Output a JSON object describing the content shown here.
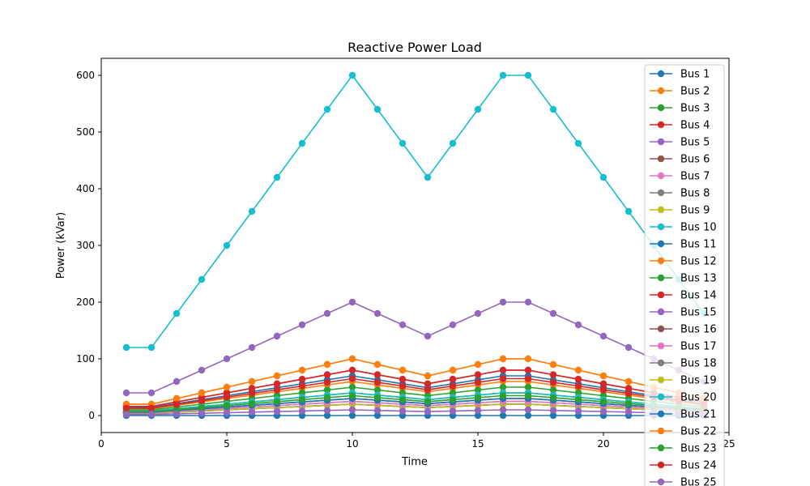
{
  "chart_data": {
    "type": "line",
    "title": "Reactive Power Load",
    "xlabel": "Time",
    "ylabel": "Power (kVar)",
    "xlim": [
      0,
      25
    ],
    "ylim": [
      -30,
      630
    ],
    "x_ticks": [
      0,
      5,
      10,
      15,
      20,
      25
    ],
    "y_ticks": [
      0,
      100,
      200,
      300,
      400,
      500,
      600
    ],
    "grid": false,
    "legend_position": "right",
    "x": [
      1,
      2,
      3,
      4,
      5,
      6,
      7,
      8,
      9,
      10,
      11,
      12,
      13,
      14,
      15,
      16,
      17,
      18,
      19,
      20,
      21,
      22,
      23,
      24
    ],
    "profile": [
      0.2,
      0.2,
      0.3,
      0.4,
      0.5,
      0.6,
      0.7,
      0.8,
      0.9,
      1.0,
      0.9,
      0.8,
      0.7,
      0.8,
      0.9,
      1.0,
      1.0,
      0.9,
      0.8,
      0.7,
      0.6,
      0.5,
      0.4,
      0.3
    ],
    "series": [
      {
        "name": "Bus 1",
        "color": "#1f77b4",
        "peak": 0
      },
      {
        "name": "Bus 2",
        "color": "#ff7f0e",
        "peak": 100
      },
      {
        "name": "Bus 3",
        "color": "#2ca02c",
        "peak": 40
      },
      {
        "name": "Bus 4",
        "color": "#d62728",
        "peak": 80
      },
      {
        "name": "Bus 5",
        "color": "#9467bd",
        "peak": 30
      },
      {
        "name": "Bus 6",
        "color": "#8c564b",
        "peak": 20
      },
      {
        "name": "Bus 7",
        "color": "#e377c2",
        "peak": 20
      },
      {
        "name": "Bus 8",
        "color": "#7f7f7f",
        "peak": 20
      },
      {
        "name": "Bus 9",
        "color": "#bcbd22",
        "peak": 20
      },
      {
        "name": "Bus 10",
        "color": "#17becf",
        "peak": 600
      },
      {
        "name": "Bus 11",
        "color": "#1f77b4",
        "peak": 70
      },
      {
        "name": "Bus 12",
        "color": "#ff7f0e",
        "peak": 60
      },
      {
        "name": "Bus 13",
        "color": "#2ca02c",
        "peak": 50
      },
      {
        "name": "Bus 14",
        "color": "#d62728",
        "peak": 80
      },
      {
        "name": "Bus 15",
        "color": "#9467bd",
        "peak": 200
      },
      {
        "name": "Bus 16",
        "color": "#8c564b",
        "peak": 25
      },
      {
        "name": "Bus 17",
        "color": "#e377c2",
        "peak": 25
      },
      {
        "name": "Bus 18",
        "color": "#7f7f7f",
        "peak": 30
      },
      {
        "name": "Bus 19",
        "color": "#bcbd22",
        "peak": 40
      },
      {
        "name": "Bus 20",
        "color": "#17becf",
        "peak": 40
      },
      {
        "name": "Bus 21",
        "color": "#1f77b4",
        "peak": 30
      },
      {
        "name": "Bus 22",
        "color": "#ff7f0e",
        "peak": 100
      },
      {
        "name": "Bus 23",
        "color": "#2ca02c",
        "peak": 35
      },
      {
        "name": "Bus 24",
        "color": "#d62728",
        "peak": 65
      },
      {
        "name": "Bus 25",
        "color": "#9467bd",
        "peak": 10
      }
    ]
  }
}
